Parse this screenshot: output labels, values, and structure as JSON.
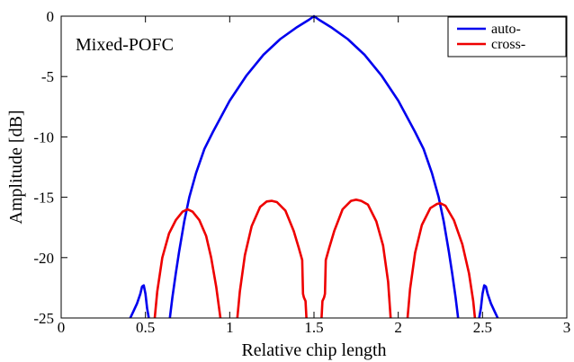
{
  "chart_data": {
    "type": "line",
    "annotation": "Mixed-POFC",
    "xlabel": "Relative chip length",
    "ylabel": "Amplitude [dB]",
    "xlim": [
      0,
      3
    ],
    "ylim": [
      -25,
      0
    ],
    "xticks": [
      0,
      0.5,
      1,
      1.5,
      2,
      2.5,
      3
    ],
    "xtick_labels": [
      "0",
      "0.5",
      "1",
      "1.5",
      "2",
      "2.5",
      "3"
    ],
    "yticks": [
      0,
      -5,
      -10,
      -15,
      -20,
      -25
    ],
    "ytick_labels": [
      "0",
      "-5",
      "-10",
      "-15",
      "-20",
      "-25"
    ],
    "grid": false,
    "legend_position": "top-right",
    "series": [
      {
        "name": "auto-",
        "color": "#0000ee",
        "segments": [
          [
            [
              0.41,
              -25
            ],
            [
              0.43,
              -24.4
            ],
            [
              0.45,
              -23.8
            ],
            [
              0.47,
              -23.0
            ],
            [
              0.48,
              -22.4
            ],
            [
              0.49,
              -22.3
            ],
            [
              0.5,
              -23.0
            ],
            [
              0.51,
              -24.2
            ],
            [
              0.52,
              -25
            ]
          ],
          [
            [
              0.645,
              -25
            ],
            [
              0.66,
              -23.3
            ],
            [
              0.68,
              -21.3
            ],
            [
              0.7,
              -19.5
            ],
            [
              0.73,
              -17.0
            ],
            [
              0.76,
              -15.0
            ],
            [
              0.8,
              -13.0
            ],
            [
              0.85,
              -11.0
            ],
            [
              0.9,
              -9.6
            ],
            [
              1.0,
              -7.0
            ],
            [
              1.1,
              -4.9
            ],
            [
              1.2,
              -3.2
            ],
            [
              1.3,
              -1.9
            ],
            [
              1.4,
              -0.9
            ],
            [
              1.47,
              -0.3
            ],
            [
              1.5,
              0.0
            ],
            [
              1.53,
              -0.3
            ],
            [
              1.6,
              -0.9
            ],
            [
              1.7,
              -1.9
            ],
            [
              1.8,
              -3.2
            ],
            [
              1.9,
              -4.9
            ],
            [
              2.0,
              -7.0
            ],
            [
              2.1,
              -9.6
            ],
            [
              2.15,
              -11.0
            ],
            [
              2.2,
              -13.0
            ],
            [
              2.24,
              -15.0
            ],
            [
              2.27,
              -17.0
            ],
            [
              2.3,
              -19.5
            ],
            [
              2.32,
              -21.3
            ],
            [
              2.34,
              -23.3
            ],
            [
              2.355,
              -25
            ]
          ],
          [
            [
              2.48,
              -25
            ],
            [
              2.49,
              -24.2
            ],
            [
              2.5,
              -23.0
            ],
            [
              2.51,
              -22.3
            ],
            [
              2.52,
              -22.4
            ],
            [
              2.53,
              -23.0
            ],
            [
              2.55,
              -23.8
            ],
            [
              2.57,
              -24.4
            ],
            [
              2.59,
              -25
            ]
          ]
        ]
      },
      {
        "name": "cross-",
        "color": "#ee0000",
        "segments": [
          [
            [
              0.555,
              -25
            ],
            [
              0.57,
              -22.8
            ],
            [
              0.6,
              -20.0
            ],
            [
              0.64,
              -18.0
            ],
            [
              0.68,
              -16.9
            ],
            [
              0.72,
              -16.2
            ],
            [
              0.75,
              -16.0
            ],
            [
              0.78,
              -16.2
            ],
            [
              0.82,
              -16.9
            ],
            [
              0.86,
              -18.2
            ],
            [
              0.89,
              -20.0
            ],
            [
              0.92,
              -22.4
            ],
            [
              0.945,
              -25
            ]
          ],
          [
            [
              1.045,
              -25
            ],
            [
              1.06,
              -22.8
            ],
            [
              1.09,
              -19.8
            ],
            [
              1.13,
              -17.4
            ],
            [
              1.18,
              -15.8
            ],
            [
              1.22,
              -15.35
            ],
            [
              1.25,
              -15.3
            ],
            [
              1.28,
              -15.4
            ],
            [
              1.33,
              -16.1
            ],
            [
              1.38,
              -17.8
            ],
            [
              1.41,
              -19.2
            ],
            [
              1.43,
              -20.2
            ],
            [
              1.435,
              -23.0
            ],
            [
              1.44,
              -23.3
            ],
            [
              1.45,
              -23.6
            ],
            [
              1.455,
              -25
            ]
          ],
          [
            [
              1.545,
              -25
            ],
            [
              1.55,
              -23.6
            ],
            [
              1.56,
              -23.3
            ],
            [
              1.565,
              -23.0
            ],
            [
              1.57,
              -20.2
            ],
            [
              1.59,
              -19.2
            ],
            [
              1.62,
              -17.8
            ],
            [
              1.67,
              -16.0
            ],
            [
              1.72,
              -15.3
            ],
            [
              1.75,
              -15.2
            ],
            [
              1.78,
              -15.3
            ],
            [
              1.82,
              -15.6
            ],
            [
              1.87,
              -17.0
            ],
            [
              1.91,
              -19.0
            ],
            [
              1.94,
              -22.0
            ],
            [
              1.955,
              -25
            ]
          ],
          [
            [
              2.055,
              -25
            ],
            [
              2.07,
              -22.6
            ],
            [
              2.1,
              -19.6
            ],
            [
              2.14,
              -17.3
            ],
            [
              2.19,
              -15.9
            ],
            [
              2.23,
              -15.55
            ],
            [
              2.25,
              -15.5
            ],
            [
              2.28,
              -15.7
            ],
            [
              2.33,
              -16.9
            ],
            [
              2.38,
              -18.9
            ],
            [
              2.42,
              -21.3
            ],
            [
              2.445,
              -23.6
            ],
            [
              2.455,
              -25
            ]
          ]
        ]
      }
    ]
  }
}
